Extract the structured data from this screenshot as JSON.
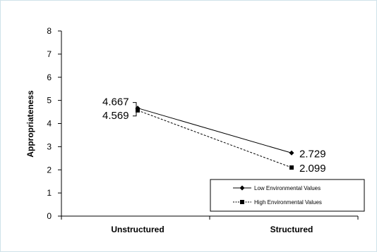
{
  "chart_data": {
    "type": "line",
    "title": "",
    "xlabel": "",
    "ylabel": "Appropriateness",
    "categories": [
      "Unstructured",
      "Structured"
    ],
    "ylim": [
      0,
      8
    ],
    "yticks": [
      0,
      1,
      2,
      3,
      4,
      5,
      6,
      7,
      8
    ],
    "grid": false,
    "legend_position": "bottom-right",
    "series": [
      {
        "name": "Low Environmental Values",
        "values": [
          4.667,
          2.729
        ],
        "labels": [
          "4.667",
          "2.729"
        ],
        "marker": "diamond",
        "line": "solid",
        "color": "#000000"
      },
      {
        "name": "High Environmental Values",
        "values": [
          4.569,
          2.099
        ],
        "labels": [
          "4.569",
          "2.099"
        ],
        "marker": "square",
        "line": "dashed",
        "color": "#000000"
      }
    ]
  }
}
